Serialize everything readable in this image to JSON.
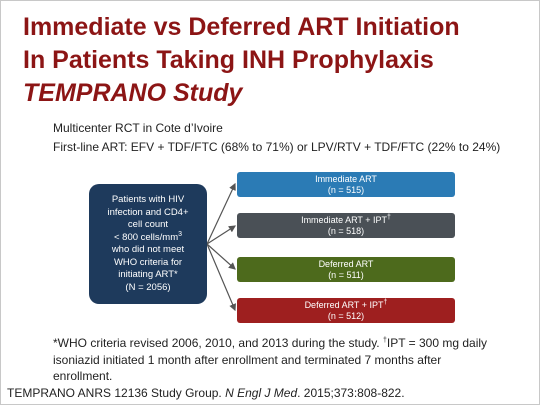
{
  "header": {
    "title_lines": [
      "Immediate vs Deferred ART Initiation",
      "In Patients Taking INH Prophylaxis"
    ],
    "subtitle": "TEMPRANO Study"
  },
  "bullets": [
    "Multicenter RCT in Cote d’Ivoire",
    "First-line ART: EFV + TDF/FTC (68% to 71%) or LPV/RTV + TDF/FTC (22% to 24%)"
  ],
  "population": {
    "lines": [
      "Patients with HIV",
      "infection and CD4+",
      "cell count"
    ],
    "count_line": "< 800 cells/mm",
    "count_sup": "3",
    "lines_after": [
      "who did not meet",
      "WHO criteria for",
      "initiating ART*",
      "(N = 2056)"
    ]
  },
  "arms": [
    {
      "name": "Immediate ART",
      "sup": null,
      "n": "(n = 515)"
    },
    {
      "name": "Immediate ART + IPT",
      "sup": "†",
      "n": "(n = 518)"
    },
    {
      "name": "Deferred ART",
      "sup": null,
      "n": "(n = 511)"
    },
    {
      "name": "Deferred ART + IPT",
      "sup": "†",
      "n": "(n = 512)"
    }
  ],
  "footnote": {
    "part1": "*WHO criteria revised 2006, 2010, and 2013 during the study. ",
    "sup": "†",
    "part2": "IPT = 300 mg daily isoniazid initiated 1 month after enrollment and terminated 7 months after enrollment."
  },
  "citation": {
    "authors": "TEMPRANO ANRS 12136 Study Group. ",
    "journal": "N Engl J Med",
    "rest": ". 2015;373:808-822."
  }
}
